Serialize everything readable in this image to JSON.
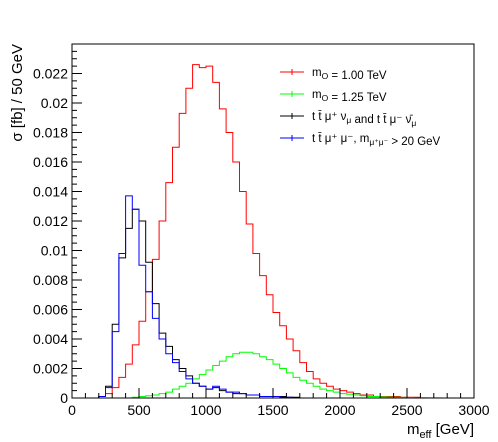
{
  "chart_data": {
    "type": "histogram",
    "xlabel": "m_eff [GeV]",
    "ylabel": "σ [fb] / 50 GeV",
    "xlim": [
      0,
      3000
    ],
    "ylim": [
      0,
      0.024
    ],
    "bin_width": 50,
    "x_ticks": [
      0,
      500,
      1000,
      1500,
      2000,
      2500,
      3000
    ],
    "y_ticks": [
      0,
      0.002,
      0.004,
      0.006,
      0.008,
      0.01,
      0.012,
      0.014,
      0.016,
      0.018,
      0.02,
      0.022
    ],
    "x_tick_labels": [
      "0",
      "500",
      "1000",
      "1500",
      "2000",
      "2500",
      "3000"
    ],
    "y_tick_labels": [
      "0",
      "0.002",
      "0.004",
      "0.006",
      "0.008",
      "0.01",
      "0.012",
      "0.014",
      "0.016",
      "0.018",
      "0.02",
      "0.022"
    ],
    "legend_position": "top-right",
    "series": [
      {
        "name": "m_O = 1.00 TeV",
        "color": "#ff0000",
        "x_start": 0,
        "values": [
          0,
          0,
          0,
          0,
          0.0001,
          0.0003,
          0.0007,
          0.0014,
          0.0023,
          0.0036,
          0.0052,
          0.0072,
          0.0094,
          0.012,
          0.0146,
          0.017,
          0.0193,
          0.021,
          0.0226,
          0.0224,
          0.0225,
          0.0214,
          0.0196,
          0.018,
          0.016,
          0.014,
          0.0118,
          0.0098,
          0.0083,
          0.007,
          0.0058,
          0.0049,
          0.004,
          0.0032,
          0.0024,
          0.0018,
          0.0013,
          0.001,
          0.0008,
          0.0006,
          0.0005,
          0.0004,
          0.0003,
          0.0002,
          0.0002,
          0.0001,
          0.0001,
          0.0001,
          0.0001,
          5e-05,
          5e-05,
          5e-05,
          0,
          0,
          0,
          0,
          0,
          0,
          0,
          0
        ]
      },
      {
        "name": "m_O = 1.25 TeV",
        "color": "#00ff00",
        "x_start": 0,
        "values": [
          0,
          0,
          0,
          0,
          0,
          0,
          0,
          0,
          0,
          5e-05,
          0.0001,
          0.00015,
          0.0002,
          0.0003,
          0.0004,
          0.0006,
          0.0008,
          0.001,
          0.0013,
          0.0016,
          0.0019,
          0.0022,
          0.0025,
          0.0028,
          0.003,
          0.0031,
          0.0031,
          0.003,
          0.0028,
          0.0026,
          0.0023,
          0.002,
          0.0017,
          0.0014,
          0.0012,
          0.001,
          0.0008,
          0.0006,
          0.0005,
          0.0004,
          0.0003,
          0.00025,
          0.0002,
          0.00015,
          0.0001,
          0.0001,
          8e-05,
          6e-05,
          5e-05,
          4e-05,
          3e-05,
          2e-05,
          2e-05,
          1e-05,
          1e-05,
          0,
          0,
          0,
          0,
          0
        ]
      },
      {
        "name": "t t̄ μ⁺ ν_μ and t t̄ μ⁻ ν̄_μ",
        "color": "#000000",
        "x_start": 0,
        "values": [
          0,
          0,
          0,
          0,
          0.0001,
          0.0008,
          0.005,
          0.0095,
          0.0115,
          0.0128,
          0.012,
          0.0092,
          0.0064,
          0.0044,
          0.0035,
          0.0026,
          0.002,
          0.0015,
          0.001,
          0.0008,
          0.0006,
          0.0007,
          0.0005,
          0.0004,
          0.0003,
          0.0003,
          0.0002,
          0.0002,
          0.0001,
          0.0001,
          0.0001,
          0.0001,
          5e-05,
          5e-05,
          0,
          0,
          0,
          0,
          0,
          0,
          0,
          0,
          0,
          0,
          0,
          0,
          0,
          0,
          0,
          0,
          0,
          0,
          0,
          0,
          0,
          0,
          0,
          0,
          0,
          0
        ]
      },
      {
        "name": "t t̄ μ⁺ μ⁻, m_μ⁺μ⁻ > 20 GeV",
        "color": "#0000ff",
        "x_start": 0,
        "values": [
          0,
          0,
          0,
          0,
          0.0001,
          0.0007,
          0.0045,
          0.0098,
          0.0137,
          0.0128,
          0.009,
          0.0072,
          0.0054,
          0.004,
          0.003,
          0.0024,
          0.0018,
          0.0013,
          0.001,
          0.0008,
          0.0006,
          0.0008,
          0.0006,
          0.0004,
          0.0004,
          0.0003,
          0.0002,
          0.0002,
          0.0001,
          0.0001,
          0.0001,
          5e-05,
          5e-05,
          0,
          0,
          0,
          0,
          0,
          0,
          0,
          0,
          0,
          0,
          0,
          0,
          0,
          0,
          0,
          0,
          0,
          0,
          0,
          0,
          0,
          0,
          0,
          0,
          0,
          0,
          0
        ]
      }
    ]
  }
}
